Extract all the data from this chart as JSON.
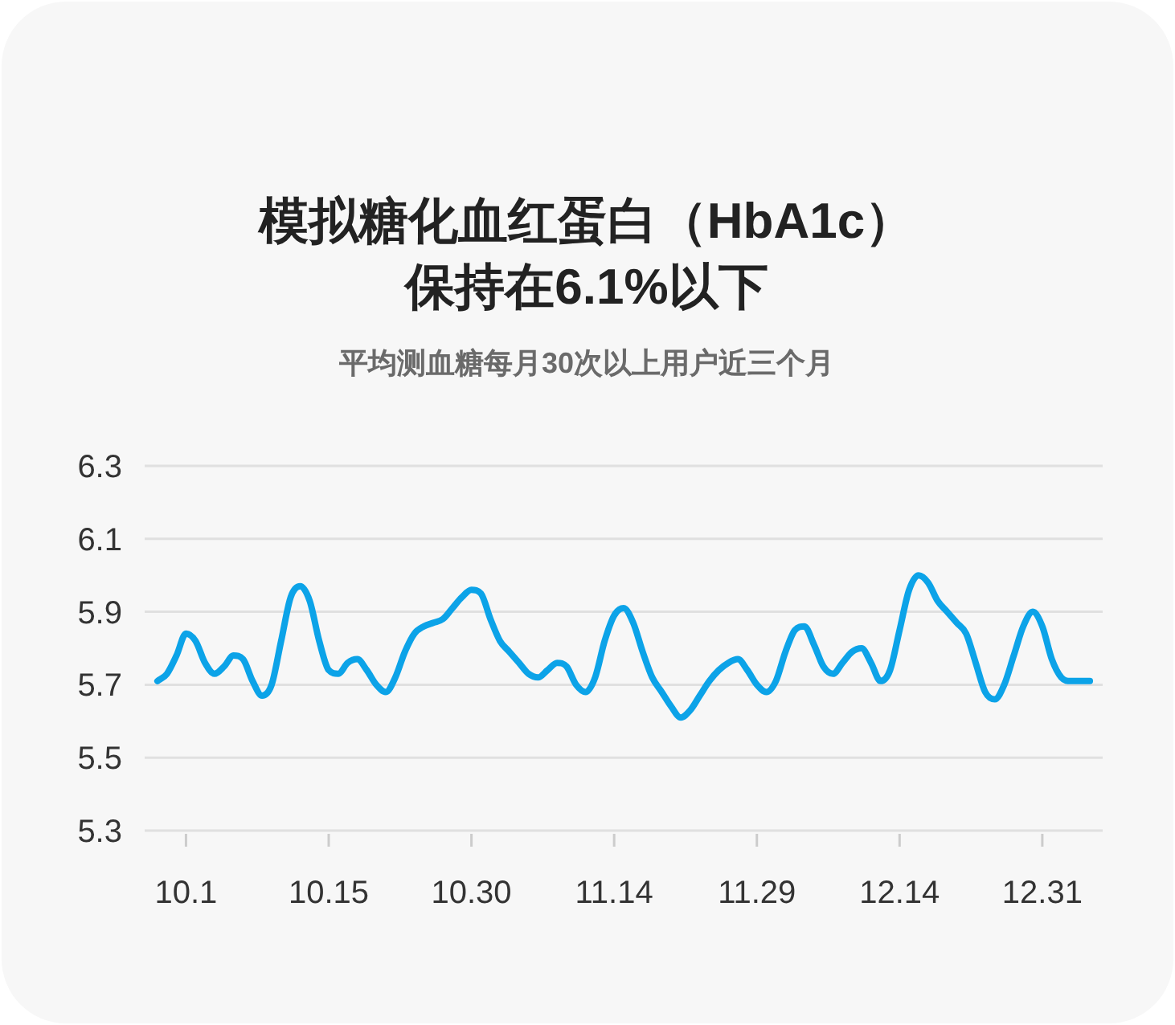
{
  "chart_data": {
    "type": "line",
    "title": "模拟糖化血红蛋白（HbA1c）保持在6.1%以下",
    "subtitle": "平均测血糖每月30次以上用户近三个月",
    "categories": [
      null,
      null,
      null,
      "10.1",
      null,
      null,
      null,
      null,
      null,
      null,
      null,
      null,
      null,
      null,
      null,
      null,
      null,
      null,
      "10.15",
      null,
      null,
      null,
      null,
      null,
      null,
      null,
      null,
      null,
      null,
      null,
      null,
      null,
      null,
      "10.30",
      null,
      null,
      null,
      null,
      null,
      null,
      null,
      null,
      null,
      null,
      null,
      null,
      null,
      null,
      "11.14",
      null,
      null,
      null,
      null,
      null,
      null,
      null,
      null,
      null,
      null,
      null,
      null,
      null,
      null,
      "11.29",
      null,
      null,
      null,
      null,
      null,
      null,
      null,
      null,
      null,
      null,
      null,
      null,
      null,
      null,
      "12.14",
      null,
      null,
      null,
      null,
      null,
      null,
      null,
      null,
      null,
      null,
      null,
      null,
      null,
      null,
      "12.31",
      null,
      null,
      null,
      null,
      null
    ],
    "series": [
      {
        "color": "#0ca3e8",
        "values": [
          5.71,
          5.73,
          5.78,
          5.84,
          5.82,
          5.76,
          5.73,
          5.75,
          5.78,
          5.77,
          5.71,
          5.67,
          5.7,
          5.82,
          5.94,
          5.97,
          5.93,
          5.82,
          5.74,
          5.73,
          5.76,
          5.77,
          5.74,
          5.7,
          5.68,
          5.72,
          5.79,
          5.84,
          5.86,
          5.87,
          5.88,
          5.91,
          5.94,
          5.96,
          5.95,
          5.88,
          5.82,
          5.79,
          5.76,
          5.73,
          5.72,
          5.74,
          5.76,
          5.75,
          5.7,
          5.68,
          5.72,
          5.82,
          5.89,
          5.91,
          5.87,
          5.79,
          5.72,
          5.68,
          5.64,
          5.61,
          5.63,
          5.67,
          5.71,
          5.74,
          5.76,
          5.77,
          5.74,
          5.7,
          5.68,
          5.71,
          5.79,
          5.85,
          5.86,
          5.81,
          5.75,
          5.73,
          5.76,
          5.79,
          5.8,
          5.76,
          5.71,
          5.74,
          5.85,
          5.96,
          6.0,
          5.98,
          5.93,
          5.9,
          5.87,
          5.84,
          5.76,
          5.68,
          5.66,
          5.7,
          5.78,
          5.86,
          5.9,
          5.86,
          5.77,
          5.72,
          5.71,
          5.71,
          5.71
        ]
      }
    ],
    "ylim": [
      5.3,
      6.3
    ],
    "yticks": [
      5.3,
      5.5,
      5.7,
      5.9,
      6.1,
      6.3
    ],
    "grid": "y",
    "marker": "none",
    "line_style": "solid"
  }
}
